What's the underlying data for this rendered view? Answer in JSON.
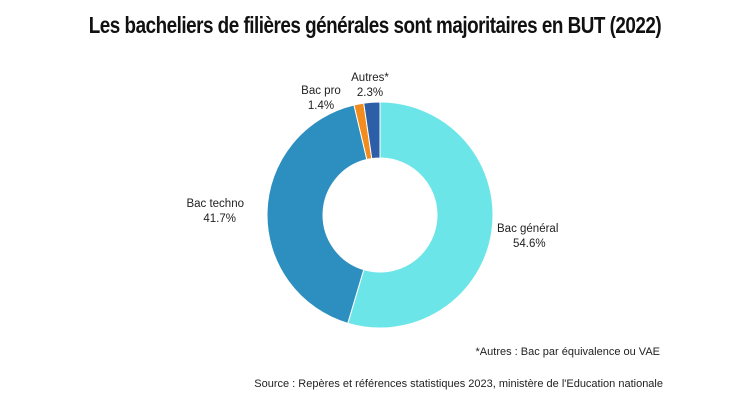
{
  "chart_data": {
    "type": "pie",
    "title": "Les bacheliers de filières générales sont majoritaires en BUT (2022)",
    "donut": true,
    "slices": [
      {
        "name": "Bac général",
        "value": 54.6,
        "label": "54.6%",
        "color": "#6ce5e8"
      },
      {
        "name": "Bac techno",
        "value": 41.7,
        "label": "41.7%",
        "color": "#2c8fbf"
      },
      {
        "name": "Bac pro",
        "value": 1.4,
        "label": "1.4%",
        "color": "#f28c1c"
      },
      {
        "name": "Autres*",
        "value": 2.3,
        "label": "2.3%",
        "color": "#2d5ea8"
      }
    ]
  },
  "footnote": "*Autres : Bac par équivalence ou VAE",
  "source": "Source : Repères et références statistiques 2023, ministère de l'Education nationale"
}
